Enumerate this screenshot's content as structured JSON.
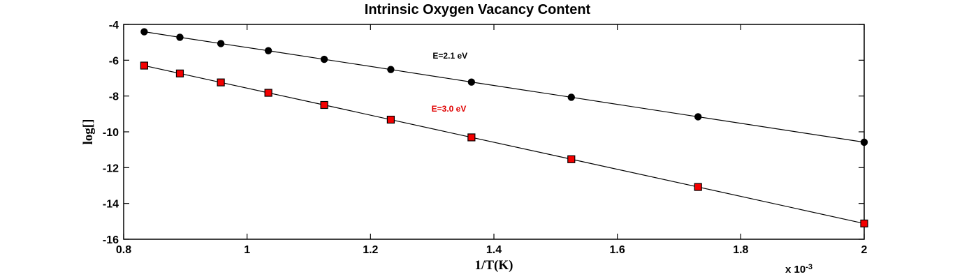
{
  "chart_data": {
    "type": "line",
    "title": "Intrinsic Oxygen Vacancy Content",
    "xlabel": "1/T(K)",
    "ylabel": "log[]",
    "x_multiplier": {
      "base": "x 10",
      "exponent": "-3"
    },
    "x_units_note": "x values shown in units of 10^-3 (1/K)",
    "xlim": [
      0.8,
      2.0
    ],
    "ylim": [
      -16,
      -4
    ],
    "xtick_values": [
      0.8,
      1,
      1.2,
      1.4,
      1.6,
      1.8,
      2
    ],
    "xtick_labels": [
      "0.8",
      "1",
      "1.2",
      "1.4",
      "1.6",
      "1.8",
      "2"
    ],
    "ytick_values": [
      -4,
      -6,
      -8,
      -10,
      -12,
      -14,
      -16
    ],
    "ytick_labels": [
      "-4",
      "-6",
      "-8",
      "-10",
      "-12",
      "-14",
      "-16"
    ],
    "grid": false,
    "legend_position": "none",
    "x": [
      0.8333,
      0.8911,
      0.9575,
      1.0345,
      1.125,
      1.2329,
      1.3636,
      1.5254,
      1.7308,
      2.0
    ],
    "series": [
      {
        "name": "E=2.1 eV",
        "marker": "circle",
        "marker_color": "#000000",
        "marker_edge_color": "#000000",
        "line_color": "#000000",
        "values": [
          -4.41,
          -4.72,
          -5.07,
          -5.47,
          -5.95,
          -6.52,
          -7.22,
          -8.07,
          -9.16,
          -10.58
        ],
        "annotation": {
          "text": "E=2.1 eV",
          "x": 1.329,
          "y": -5.91,
          "color": "#000000"
        }
      },
      {
        "name": "E=3.0 eV",
        "marker": "square",
        "marker_color": "#f40000",
        "marker_edge_color": "#000000",
        "line_color": "#000000",
        "values": [
          -6.3,
          -6.74,
          -7.24,
          -7.82,
          -8.5,
          -9.32,
          -10.31,
          -11.53,
          -13.08,
          -15.12
        ],
        "annotation": {
          "text": "E=3.0 eV",
          "x": 1.327,
          "y": -8.87,
          "color": "#e00000"
        }
      }
    ]
  }
}
